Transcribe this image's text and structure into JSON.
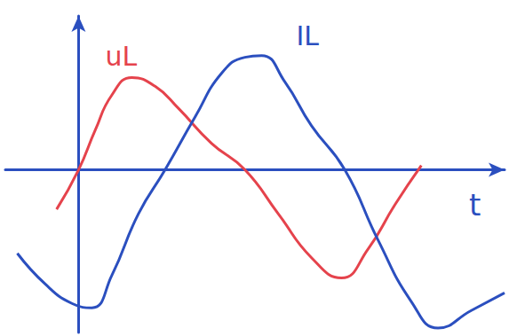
{
  "chart_data": {
    "type": "line",
    "x_label": "t",
    "tick_labels": false,
    "grid": false,
    "xlim": [
      -2.2,
      12.8
    ],
    "ylim": [
      -18.5,
      17.5
    ],
    "series": [
      {
        "name": "uL",
        "color": "#e5434c",
        "x": [
          -0.66,
          0,
          0.5,
          1.0,
          1.6,
          2.3,
          3.0,
          4.0,
          5.0,
          6.0,
          7.0,
          7.9,
          8.7,
          9.5,
          10.3
        ],
        "values": [
          -4.5,
          0,
          4.5,
          8.5,
          10.5,
          9.5,
          7,
          3,
          0,
          -5,
          -10,
          -12.3,
          -9,
          -4,
          0.5
        ]
      },
      {
        "name": "IL",
        "color": "#2b4fbf",
        "x": [
          -1.84,
          -1.0,
          -0.2,
          0.4,
          1.0,
          1.8,
          2.6,
          3.5,
          4.3,
          5.0,
          5.5,
          6.2,
          7.0,
          8.0,
          9.0,
          10.0,
          10.8,
          11.8,
          12.8
        ],
        "values": [
          -9.5,
          -13,
          -15.2,
          -15.7,
          -12,
          -5,
          0,
          6,
          11,
          12.8,
          13,
          10,
          5,
          0,
          -8,
          -15,
          -18,
          -16,
          -14
        ]
      }
    ]
  }
}
